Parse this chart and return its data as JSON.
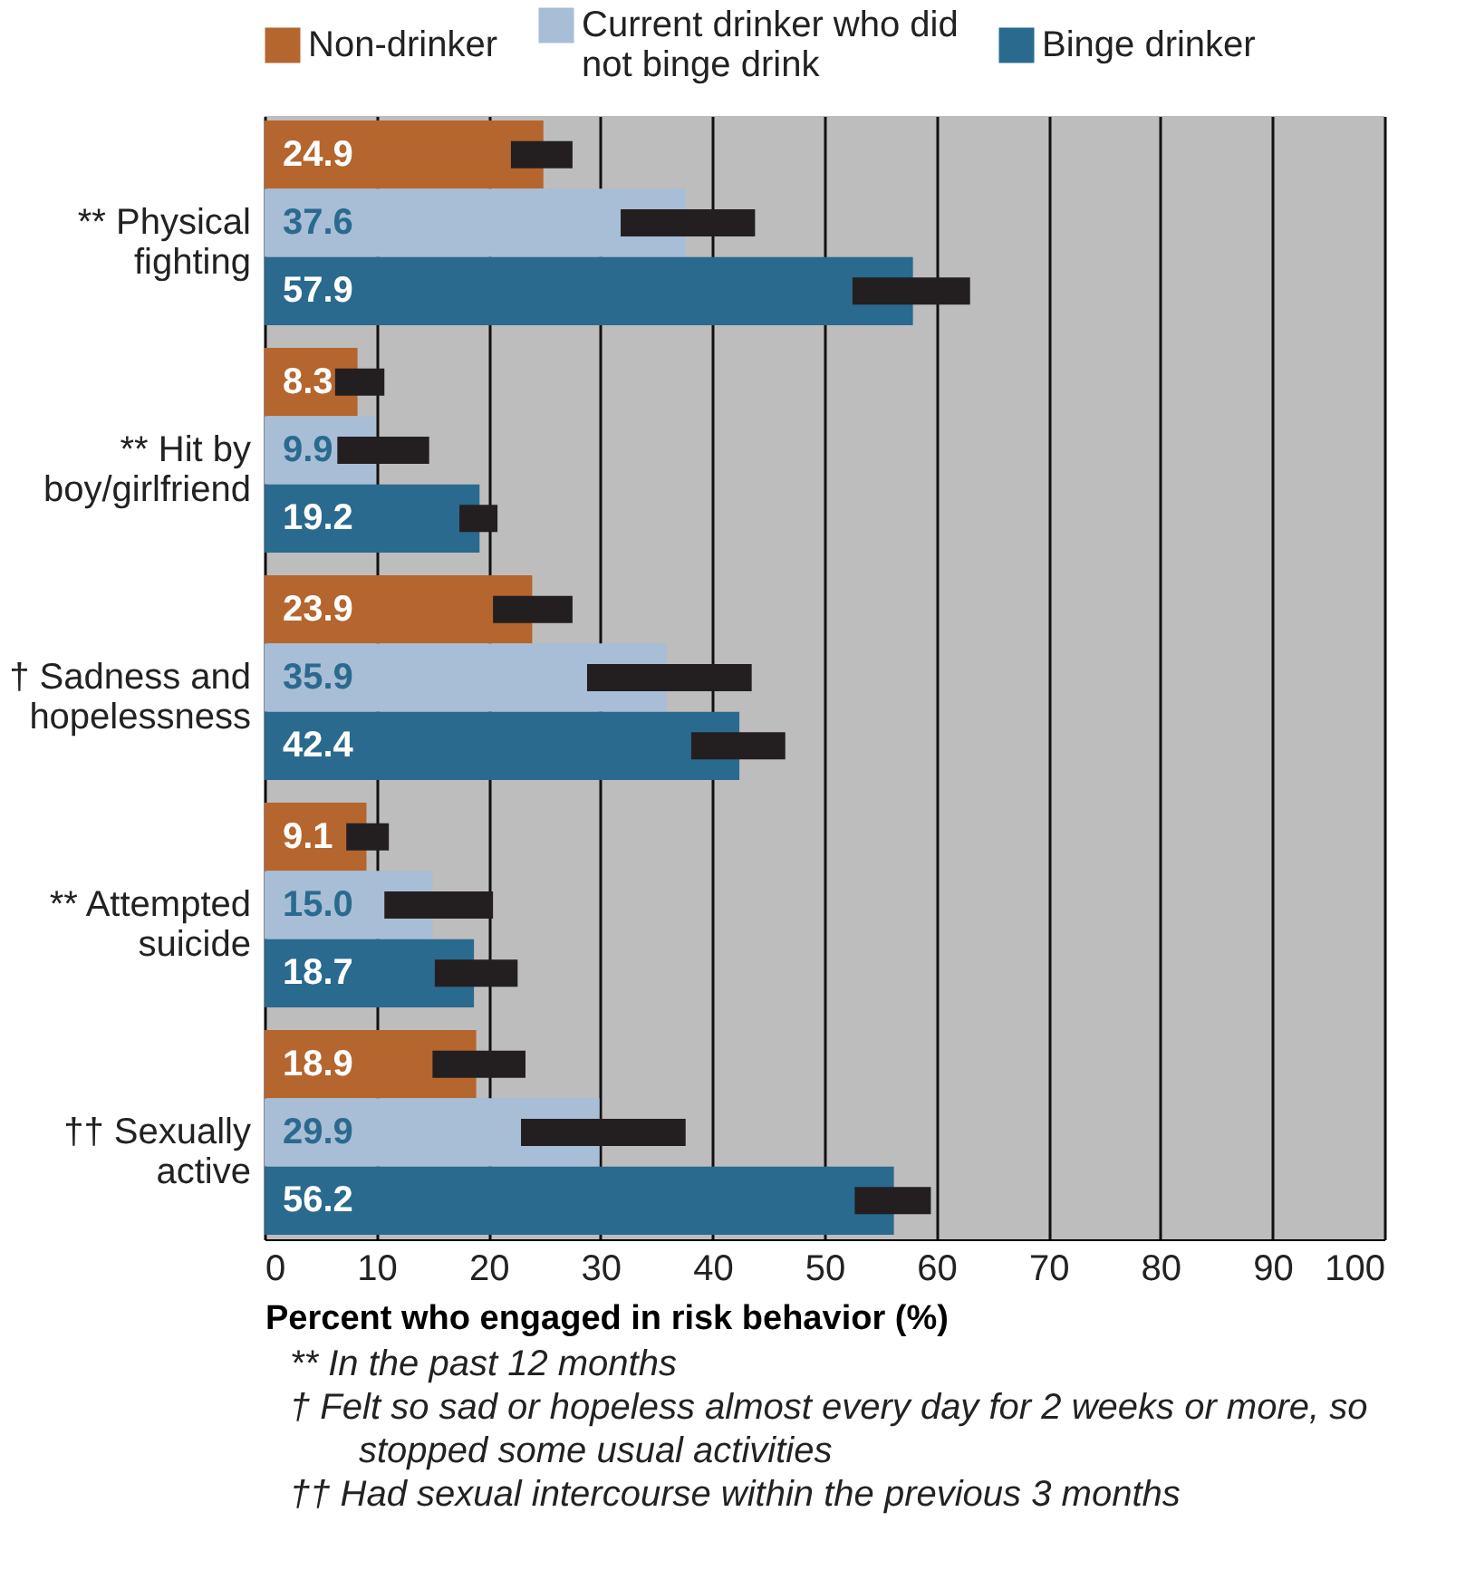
{
  "chart_data": {
    "type": "bar",
    "orientation": "horizontal",
    "xlabel": "Percent who engaged in risk behavior (%)",
    "categories": [
      "** Physical fighting",
      "** Hit by boy/girlfriend",
      "† Sadness and hopelessness",
      "** Attempted suicide",
      "†† Sexually active"
    ],
    "series": [
      {
        "name": "Non-drinker",
        "color": "#b5652e",
        "values": [
          24.9,
          8.3,
          23.9,
          9.1,
          18.9
        ],
        "value_labels": [
          "24.9",
          "8.3",
          "23.9",
          "9.1",
          "18.9"
        ],
        "errors": [
          [
            22.0,
            27.5
          ],
          [
            6.3,
            10.7
          ],
          [
            20.4,
            27.5
          ],
          [
            7.3,
            11.1
          ],
          [
            15.0,
            23.3
          ]
        ]
      },
      {
        "name": "Current drinker who did not binge drink",
        "color": "#a8bdd6",
        "values": [
          37.6,
          9.9,
          35.9,
          15.0,
          29.9
        ],
        "value_labels": [
          "37.6",
          "9.9",
          "35.9",
          "15.0",
          "29.9"
        ],
        "errors": [
          [
            31.8,
            43.8
          ],
          [
            6.5,
            14.7
          ],
          [
            28.8,
            43.5
          ],
          [
            10.7,
            20.4
          ],
          [
            22.9,
            37.6
          ]
        ]
      },
      {
        "name": "Binge drinker",
        "color": "#2a6a8e",
        "values": [
          57.9,
          19.2,
          42.4,
          18.7,
          56.2
        ],
        "value_labels": [
          "57.9",
          "19.2",
          "42.4",
          "18.7",
          "56.2"
        ],
        "errors": [
          [
            52.5,
            63.0
          ],
          [
            17.4,
            20.8
          ],
          [
            38.1,
            46.5
          ],
          [
            15.2,
            22.6
          ],
          [
            52.7,
            59.5
          ]
        ]
      }
    ],
    "xlim": [
      0,
      100
    ],
    "xticks": [
      0,
      10,
      20,
      30,
      40,
      50,
      60,
      70,
      80,
      90,
      100
    ],
    "grid": "x",
    "legend": "top",
    "annotations": [
      "** In the past 12 months",
      "† Felt so sad or hopeless almost every day for 2 weeks or more, so stopped some usual activities",
      "†† Had sexual intercourse within the previous 3 months"
    ]
  }
}
